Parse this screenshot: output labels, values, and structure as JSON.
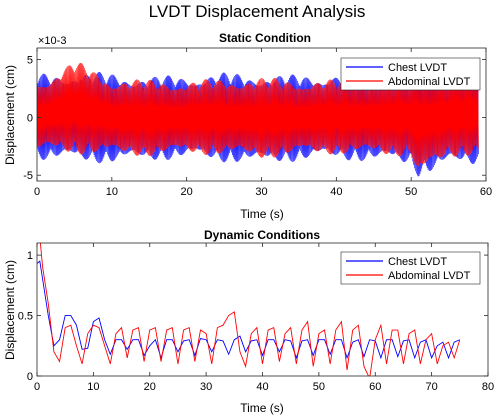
{
  "figure": {
    "title": "LVDT Displacement Analysis"
  },
  "chart_data": [
    {
      "type": "line",
      "title": "Static Condition",
      "xlabel": "Time (s)",
      "ylabel": "Displacement (cm)",
      "y_multiplier": "×10-3",
      "xlim": [
        0,
        60
      ],
      "ylim": [
        -5.5,
        6
      ],
      "xticks": [
        0,
        10,
        20,
        30,
        40,
        50,
        60
      ],
      "yticks": [
        -5,
        0,
        5
      ],
      "legend": "top-right",
      "grid": false,
      "series": [
        {
          "name": "Chest LVDT",
          "color": "#0000ff",
          "envelope": {
            "t": [
              0,
              5,
              10,
              15,
              20,
              25,
              30,
              35,
              40,
              45,
              50,
              51,
              55,
              59
            ],
            "upper": [
              3.8,
              4.0,
              3.9,
              3.6,
              3.7,
              3.9,
              3.8,
              3.7,
              3.9,
              4.0,
              4.2,
              5.2,
              4.6,
              4.8
            ],
            "lower": [
              -3.7,
              -3.9,
              -4.0,
              -3.8,
              -3.6,
              -3.9,
              -4.1,
              -3.8,
              -3.7,
              -3.9,
              -4.2,
              -5.2,
              -4.4,
              -4.1
            ]
          }
        },
        {
          "name": "Abdominal LVDT",
          "color": "#ff0000",
          "envelope": {
            "t": [
              0,
              5,
              10,
              15,
              20,
              25,
              30,
              35,
              40,
              45,
              50,
              51,
              55,
              59
            ],
            "upper": [
              3.0,
              5.0,
              3.4,
              3.3,
              3.2,
              3.4,
              3.5,
              3.3,
              3.3,
              3.4,
              3.5,
              4.7,
              3.9,
              4.0
            ],
            "lower": [
              -3.0,
              -3.2,
              -3.3,
              -3.4,
              -3.2,
              -3.3,
              -3.6,
              -3.3,
              -3.2,
              -3.3,
              -3.4,
              -5.4,
              -3.5,
              -3.3
            ]
          }
        }
      ]
    },
    {
      "type": "line",
      "title": "Dynamic Conditions",
      "xlabel": "Time (s)",
      "ylabel": "Displacement (cm)",
      "xlim": [
        0,
        80
      ],
      "ylim": [
        0,
        1.1
      ],
      "xticks": [
        0,
        10,
        20,
        30,
        40,
        50,
        60,
        70,
        80
      ],
      "yticks": [
        0,
        0.5,
        1
      ],
      "legend": "top-right",
      "grid": false,
      "series": [
        {
          "name": "Chest LVDT",
          "color": "#0000ff",
          "x": [
            0,
            0.5,
            1,
            2,
            3,
            4,
            5,
            6,
            7,
            8,
            9,
            10,
            11,
            12,
            13,
            14,
            15,
            16,
            17,
            18,
            19,
            20,
            21,
            22,
            23,
            24,
            25,
            26,
            27,
            28,
            29,
            30,
            31,
            32,
            33,
            34,
            35,
            36,
            37,
            38,
            39,
            40,
            41,
            42,
            43,
            44,
            45,
            46,
            47,
            48,
            49,
            50,
            51,
            52,
            53,
            54,
            55,
            56,
            57,
            58,
            59,
            60,
            61,
            62,
            63,
            64,
            65,
            66,
            67,
            68,
            69,
            70,
            71,
            72,
            73,
            74,
            75
          ],
          "y": [
            0.93,
            0.95,
            0.8,
            0.5,
            0.25,
            0.3,
            0.5,
            0.5,
            0.42,
            0.22,
            0.23,
            0.45,
            0.48,
            0.3,
            0.18,
            0.3,
            0.3,
            0.22,
            0.3,
            0.3,
            0.17,
            0.25,
            0.3,
            0.15,
            0.3,
            0.3,
            0.2,
            0.29,
            0.3,
            0.17,
            0.31,
            0.3,
            0.2,
            0.3,
            0.29,
            0.18,
            0.3,
            0.33,
            0.2,
            0.29,
            0.3,
            0.17,
            0.3,
            0.3,
            0.2,
            0.3,
            0.29,
            0.15,
            0.29,
            0.3,
            0.17,
            0.3,
            0.3,
            0.18,
            0.3,
            0.3,
            0.15,
            0.28,
            0.3,
            0.16,
            0.3,
            0.29,
            0.15,
            0.3,
            0.3,
            0.16,
            0.29,
            0.3,
            0.15,
            0.28,
            0.3,
            0.15,
            0.25,
            0.28,
            0.15,
            0.28,
            0.3
          ]
        },
        {
          "name": "Abdominal LVDT",
          "color": "#ff0000",
          "x": [
            0,
            0.5,
            1,
            2,
            3,
            4,
            5,
            6,
            7,
            8,
            9,
            10,
            11,
            12,
            13,
            14,
            15,
            16,
            17,
            18,
            19,
            20,
            21,
            22,
            23,
            24,
            25,
            26,
            27,
            28,
            29,
            30,
            31,
            32,
            33,
            34,
            35,
            36,
            37,
            38,
            39,
            40,
            41,
            42,
            43,
            44,
            45,
            46,
            47,
            48,
            49,
            50,
            51,
            52,
            53,
            54,
            55,
            56,
            57,
            58,
            59,
            60,
            61,
            62,
            63,
            64,
            65,
            66,
            67,
            68,
            69,
            70,
            71,
            72,
            73,
            74,
            75
          ],
          "y": [
            1.1,
            1.15,
            0.9,
            0.6,
            0.2,
            0.12,
            0.4,
            0.42,
            0.25,
            0.1,
            0.35,
            0.42,
            0.4,
            0.25,
            0.1,
            0.35,
            0.4,
            0.15,
            0.38,
            0.4,
            0.12,
            0.38,
            0.4,
            0.12,
            0.38,
            0.4,
            0.1,
            0.38,
            0.4,
            0.12,
            0.38,
            0.35,
            0.1,
            0.4,
            0.42,
            0.5,
            0.53,
            0.2,
            0.08,
            0.35,
            0.4,
            0.1,
            0.38,
            0.4,
            0.12,
            0.35,
            0.4,
            0.1,
            0.38,
            0.45,
            0.08,
            0.35,
            0.38,
            0.1,
            0.38,
            0.45,
            0.05,
            0.38,
            0.42,
            0.08,
            -0.02,
            0.3,
            0.42,
            0.1,
            0.38,
            0.38,
            0.1,
            0.35,
            0.38,
            0.1,
            0.3,
            0.35,
            0.1,
            0.25,
            0.28,
            0.15,
            0.3
          ]
        }
      ]
    }
  ]
}
